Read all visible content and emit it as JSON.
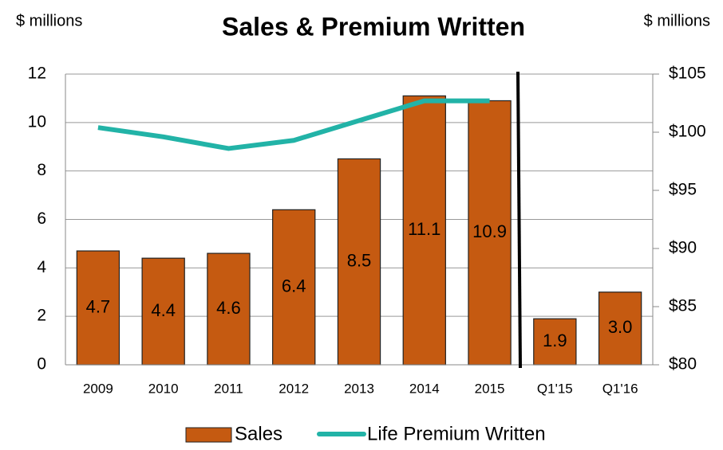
{
  "chart_data": {
    "type": "bar-line",
    "title": "Sales & Premium Written",
    "y_axis_label": "$ millions",
    "y2_axis_label": "$ millions",
    "categories": [
      "2009",
      "2010",
      "2011",
      "2012",
      "2013",
      "2014",
      "2015",
      "Q1'15",
      "Q1'16"
    ],
    "series": [
      {
        "name": "Sales",
        "type": "bar",
        "color": "#c55a11",
        "values": [
          4.7,
          4.4,
          4.6,
          6.4,
          8.5,
          11.1,
          10.9,
          1.9,
          3.0
        ],
        "value_labels": [
          "4.7",
          "4.4",
          "4.6",
          "6.4",
          "8.5",
          "11.1",
          "10.9",
          "1.9",
          "3.0"
        ]
      },
      {
        "name": "Life Premium Written",
        "type": "line",
        "color": "#22b3a7",
        "axis": "y2",
        "values": [
          100.4,
          99.6,
          98.6,
          99.3,
          101.0,
          102.7,
          102.7,
          null,
          null
        ]
      }
    ],
    "ylim": [
      0,
      12
    ],
    "yticks": [
      0,
      2,
      4,
      6,
      8,
      10,
      12
    ],
    "y2lim": [
      80,
      105
    ],
    "y2ticks": [
      {
        "value": 80,
        "label": "$80"
      },
      {
        "value": 85,
        "label": "$85"
      },
      {
        "value": 90,
        "label": "$90"
      },
      {
        "value": 95,
        "label": "$95"
      },
      {
        "value": 100,
        "label": "$100"
      },
      {
        "value": 105,
        "label": "$105"
      }
    ],
    "grid": true,
    "legend": "bottom"
  }
}
